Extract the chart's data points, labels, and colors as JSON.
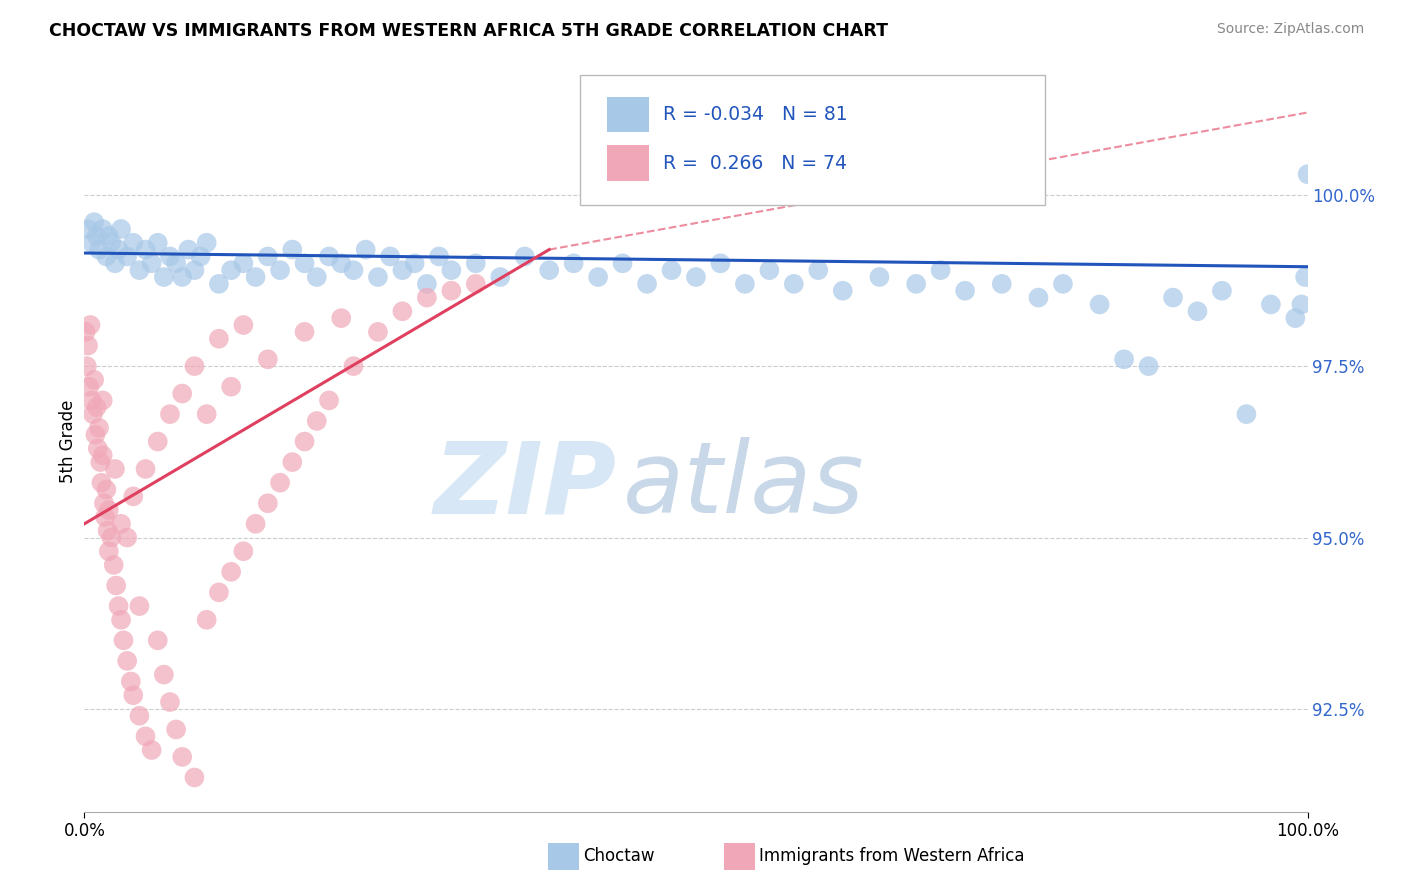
{
  "title": "CHOCTAW VS IMMIGRANTS FROM WESTERN AFRICA 5TH GRADE CORRELATION CHART",
  "source": "Source: ZipAtlas.com",
  "ylabel": "5th Grade",
  "x_min": 0.0,
  "x_max": 100.0,
  "y_min": 91.0,
  "y_max": 101.8,
  "y_ticks": [
    92.5,
    95.0,
    97.5,
    100.0
  ],
  "blue_R": -0.034,
  "blue_N": 81,
  "pink_R": 0.266,
  "pink_N": 74,
  "blue_color": "#a8c8e8",
  "pink_color": "#f0a8b8",
  "blue_line_color": "#2255bb",
  "pink_line_color": "#e04060",
  "watermark_zip": "ZIP",
  "watermark_atlas": "atlas",
  "legend_label_blue": "Choctaw",
  "legend_label_pink": "Immigrants from Western Africa",
  "blue_x": [
    0.3,
    0.6,
    0.8,
    1.0,
    1.2,
    1.5,
    1.8,
    2.0,
    2.2,
    2.5,
    2.8,
    3.0,
    3.5,
    4.0,
    4.5,
    5.0,
    5.5,
    6.0,
    6.5,
    7.0,
    7.5,
    8.0,
    8.5,
    9.0,
    9.5,
    10.0,
    11.0,
    12.0,
    13.0,
    14.0,
    15.0,
    16.0,
    17.0,
    18.0,
    19.0,
    20.0,
    21.0,
    22.0,
    23.0,
    24.0,
    25.0,
    26.0,
    27.0,
    28.0,
    29.0,
    30.0,
    32.0,
    34.0,
    36.0,
    38.0,
    40.0,
    42.0,
    44.0,
    46.0,
    48.0,
    50.0,
    52.0,
    54.0,
    56.0,
    58.0,
    60.0,
    62.0,
    65.0,
    68.0,
    70.0,
    72.0,
    75.0,
    78.0,
    80.0,
    83.0,
    85.0,
    87.0,
    89.0,
    91.0,
    93.0,
    95.0,
    97.0,
    99.0,
    99.5,
    100.0,
    99.8
  ],
  "blue_y": [
    99.5,
    99.3,
    99.6,
    99.4,
    99.2,
    99.5,
    99.1,
    99.4,
    99.3,
    99.0,
    99.2,
    99.5,
    99.1,
    99.3,
    98.9,
    99.2,
    99.0,
    99.3,
    98.8,
    99.1,
    99.0,
    98.8,
    99.2,
    98.9,
    99.1,
    99.3,
    98.7,
    98.9,
    99.0,
    98.8,
    99.1,
    98.9,
    99.2,
    99.0,
    98.8,
    99.1,
    99.0,
    98.9,
    99.2,
    98.8,
    99.1,
    98.9,
    99.0,
    98.7,
    99.1,
    98.9,
    99.0,
    98.8,
    99.1,
    98.9,
    99.0,
    98.8,
    99.0,
    98.7,
    98.9,
    98.8,
    99.0,
    98.7,
    98.9,
    98.7,
    98.9,
    98.6,
    98.8,
    98.7,
    98.9,
    98.6,
    98.7,
    98.5,
    98.7,
    98.4,
    97.6,
    97.5,
    98.5,
    98.3,
    98.6,
    96.8,
    98.4,
    98.2,
    98.4,
    100.3,
    98.8
  ],
  "pink_x": [
    0.1,
    0.2,
    0.3,
    0.4,
    0.5,
    0.6,
    0.7,
    0.8,
    0.9,
    1.0,
    1.1,
    1.2,
    1.3,
    1.4,
    1.5,
    1.6,
    1.7,
    1.8,
    1.9,
    2.0,
    2.2,
    2.4,
    2.6,
    2.8,
    3.0,
    3.2,
    3.5,
    3.8,
    4.0,
    4.5,
    5.0,
    5.5,
    6.0,
    6.5,
    7.0,
    7.5,
    8.0,
    9.0,
    10.0,
    11.0,
    12.0,
    13.0,
    14.0,
    15.0,
    16.0,
    17.0,
    18.0,
    19.0,
    20.0,
    22.0,
    24.0,
    26.0,
    28.0,
    30.0,
    32.0,
    10.0,
    12.0,
    15.0,
    18.0,
    21.0,
    2.0,
    3.0,
    4.0,
    5.0,
    6.0,
    7.0,
    8.0,
    9.0,
    11.0,
    13.0,
    1.5,
    2.5,
    3.5,
    4.5
  ],
  "pink_y": [
    98.0,
    97.5,
    97.8,
    97.2,
    98.1,
    97.0,
    96.8,
    97.3,
    96.5,
    96.9,
    96.3,
    96.6,
    96.1,
    95.8,
    96.2,
    95.5,
    95.3,
    95.7,
    95.1,
    95.4,
    95.0,
    94.6,
    94.3,
    94.0,
    93.8,
    93.5,
    93.2,
    92.9,
    92.7,
    92.4,
    92.1,
    91.9,
    93.5,
    93.0,
    92.6,
    92.2,
    91.8,
    91.5,
    93.8,
    94.2,
    94.5,
    94.8,
    95.2,
    95.5,
    95.8,
    96.1,
    96.4,
    96.7,
    97.0,
    97.5,
    98.0,
    98.3,
    98.5,
    98.6,
    98.7,
    96.8,
    97.2,
    97.6,
    98.0,
    98.2,
    94.8,
    95.2,
    95.6,
    96.0,
    96.4,
    96.8,
    97.1,
    97.5,
    97.9,
    98.1,
    97.0,
    96.0,
    95.0,
    94.0
  ]
}
